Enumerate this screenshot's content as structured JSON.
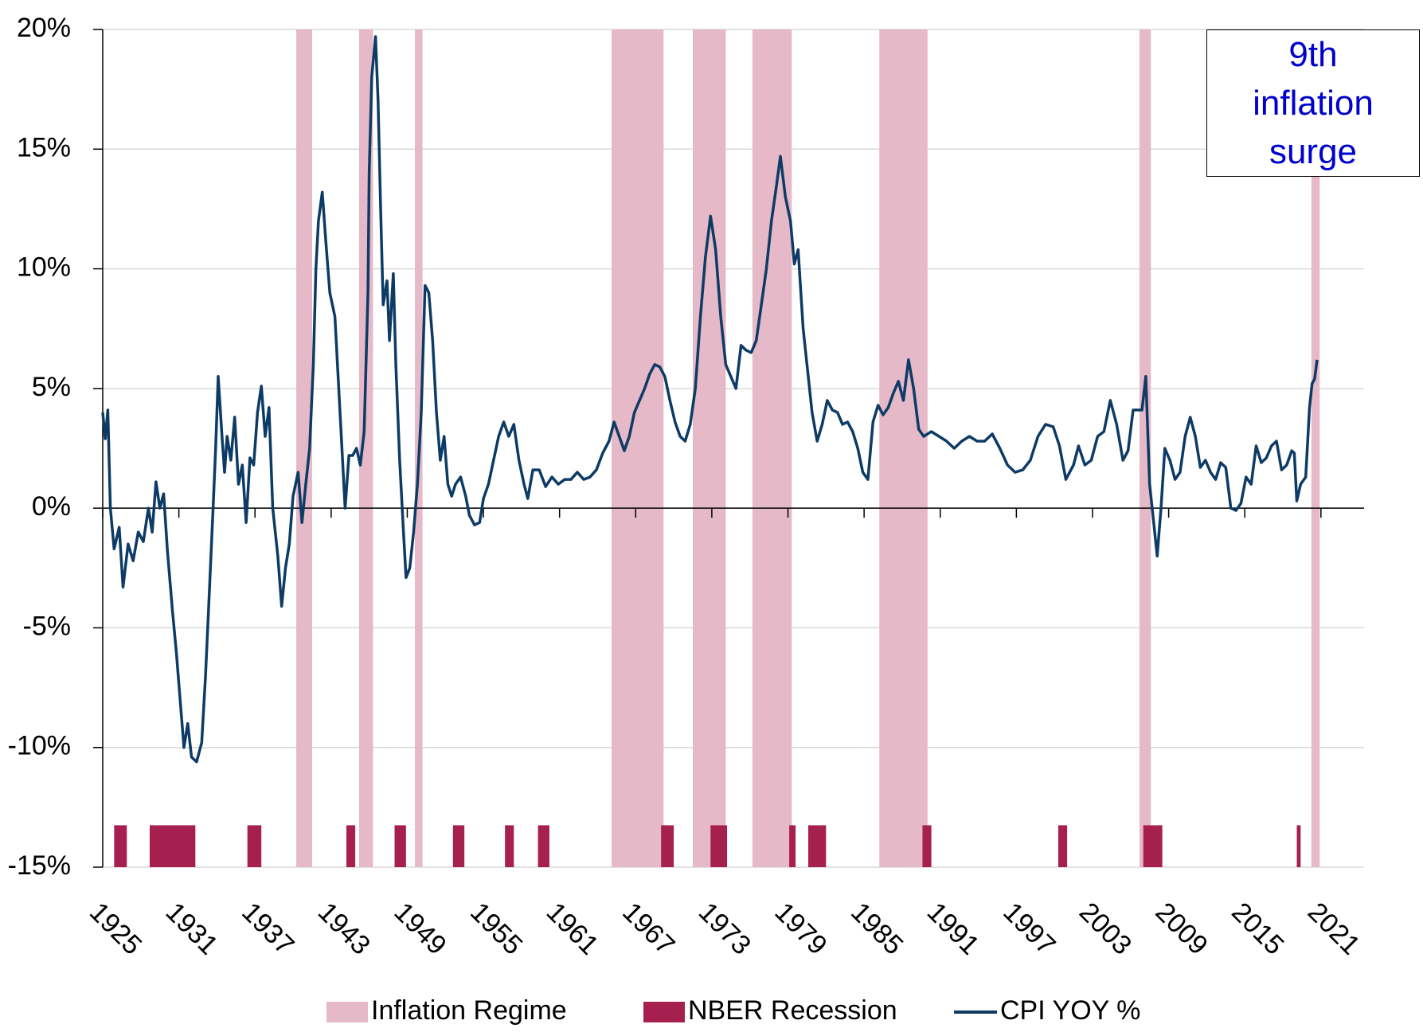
{
  "chart_data": {
    "type": "line",
    "x": [
      1925.0,
      1925.2,
      1925.4,
      1925.6,
      1925.9,
      1926.3,
      1926.6,
      1927.0,
      1927.4,
      1927.8,
      1928.2,
      1928.6,
      1928.9,
      1929.2,
      1929.5,
      1929.8,
      1930.1,
      1930.5,
      1930.8,
      1931.1,
      1931.4,
      1931.7,
      1932.0,
      1932.4,
      1932.8,
      1933.1,
      1933.4,
      1933.7,
      1933.9,
      1934.1,
      1934.4,
      1934.6,
      1934.8,
      1935.1,
      1935.4,
      1935.7,
      1936.0,
      1936.3,
      1936.6,
      1936.9,
      1937.2,
      1937.5,
      1937.8,
      1938.1,
      1938.4,
      1938.8,
      1939.1,
      1939.4,
      1939.7,
      1940.0,
      1940.4,
      1940.7,
      1941.0,
      1941.3,
      1941.6,
      1941.8,
      1942.0,
      1942.3,
      1942.6,
      1942.9,
      1943.3,
      1943.6,
      1943.9,
      1944.1,
      1944.4,
      1944.7,
      1945.0,
      1945.3,
      1945.6,
      1945.9,
      1946.0,
      1946.2,
      1946.5,
      1946.7,
      1946.9,
      1947.1,
      1947.4,
      1947.6,
      1947.9,
      1948.1,
      1948.4,
      1948.7,
      1948.9,
      1949.2,
      1949.5,
      1949.8,
      1950.1,
      1950.4,
      1950.7,
      1951.0,
      1951.3,
      1951.6,
      1951.9,
      1952.2,
      1952.5,
      1952.8,
      1953.2,
      1953.6,
      1953.9,
      1954.3,
      1954.7,
      1955.0,
      1955.4,
      1955.8,
      1956.2,
      1956.6,
      1957.0,
      1957.4,
      1957.8,
      1958.2,
      1958.5,
      1958.9,
      1959.4,
      1959.9,
      1960.4,
      1960.9,
      1961.4,
      1961.9,
      1962.4,
      1962.9,
      1963.4,
      1963.9,
      1964.4,
      1964.9,
      1965.3,
      1965.7,
      1966.1,
      1966.5,
      1966.9,
      1967.3,
      1967.7,
      1968.1,
      1968.5,
      1968.9,
      1969.3,
      1969.7,
      1970.1,
      1970.5,
      1970.9,
      1971.3,
      1971.7,
      1972.1,
      1972.5,
      1972.9,
      1973.3,
      1973.7,
      1974.1,
      1974.5,
      1974.9,
      1975.3,
      1975.7,
      1976.1,
      1976.5,
      1976.9,
      1977.3,
      1977.7,
      1978.1,
      1978.4,
      1978.8,
      1979.2,
      1979.5,
      1979.8,
      1980.2,
      1980.5,
      1980.9,
      1981.3,
      1981.7,
      1982.1,
      1982.5,
      1982.9,
      1983.3,
      1983.7,
      1984.1,
      1984.5,
      1984.9,
      1985.3,
      1985.7,
      1986.1,
      1986.5,
      1986.9,
      1987.3,
      1987.7,
      1988.1,
      1988.5,
      1988.9,
      1989.3,
      1989.7,
      1990.3,
      1990.9,
      1991.5,
      1992.1,
      1992.7,
      1993.3,
      1993.9,
      1994.5,
      1995.1,
      1995.7,
      1996.3,
      1996.9,
      1997.5,
      1998.1,
      1998.7,
      1999.3,
      1999.9,
      2000.4,
      2000.9,
      2001.5,
      2001.9,
      2002.4,
      2002.9,
      2003.4,
      2003.9,
      2004.4,
      2004.9,
      2005.4,
      2005.8,
      2006.2,
      2006.6,
      2006.9,
      2007.2,
      2007.5,
      2007.8,
      2008.1,
      2008.4,
      2008.7,
      2009.1,
      2009.5,
      2009.9,
      2010.3,
      2010.7,
      2011.1,
      2011.5,
      2011.9,
      2012.3,
      2012.7,
      2013.1,
      2013.5,
      2013.9,
      2014.3,
      2014.7,
      2015.1,
      2015.5,
      2015.9,
      2016.3,
      2016.7,
      2017.1,
      2017.5,
      2017.9,
      2018.3,
      2018.7,
      2018.9,
      2019.1,
      2019.4,
      2019.8,
      2020.1,
      2020.3,
      2020.5,
      2020.7
    ],
    "series": [
      {
        "name": "CPI YOY %",
        "color": "#0d3b66",
        "values": [
          4,
          2.9,
          4.1,
          0,
          -1.7,
          -0.8,
          -3.3,
          -1.5,
          -2.2,
          -1,
          -1.4,
          0,
          -1,
          1.1,
          0,
          0.6,
          -1.8,
          -4.3,
          -6,
          -8,
          -10,
          -9,
          -10.4,
          -10.6,
          -9.8,
          -7,
          -3.5,
          0,
          2.5,
          5.5,
          3,
          1.5,
          3,
          2,
          3.8,
          1,
          1.8,
          -0.6,
          2.1,
          1.8,
          4,
          5.1,
          3,
          4.2,
          0,
          -2,
          -4.1,
          -2.5,
          -1.5,
          0.5,
          1.5,
          -0.6,
          1,
          2.5,
          6,
          10,
          12,
          13.2,
          11,
          9,
          8,
          5,
          2,
          0,
          2.2,
          2.2,
          2.5,
          1.8,
          3.2,
          9,
          14,
          18,
          19.7,
          17,
          12.5,
          8.5,
          9.5,
          7,
          9.8,
          6,
          2,
          -1,
          -2.9,
          -2.5,
          -1,
          1,
          4,
          9.3,
          9,
          7,
          4,
          2,
          3,
          1,
          0.5,
          1,
          1.3,
          0.5,
          -0.3,
          -0.7,
          -0.6,
          0.4,
          1,
          2,
          3,
          3.6,
          3,
          3.5,
          2,
          1,
          0.4,
          1.6,
          1.6,
          0.9,
          1.3,
          1,
          1.2,
          1.2,
          1.5,
          1.2,
          1.3,
          1.6,
          2.3,
          2.8,
          3.6,
          3,
          2.4,
          3,
          4,
          4.5,
          5,
          5.6,
          6,
          5.9,
          5.5,
          4.5,
          3.6,
          3,
          2.8,
          3.5,
          5,
          8,
          10.5,
          12.2,
          10.8,
          8,
          6,
          5.5,
          5,
          6.8,
          6.6,
          6.5,
          7,
          8.5,
          10,
          12,
          13.5,
          14.7,
          13,
          12,
          10.2,
          10.8,
          7.5,
          6,
          4,
          2.8,
          3.5,
          4.5,
          4.1,
          4,
          3.5,
          3.6,
          3.2,
          2.5,
          1.5,
          1.2,
          3.6,
          4.3,
          3.9,
          4.2,
          4.8,
          5.3,
          4.5,
          6.2,
          5,
          3.3,
          3,
          3.2,
          3,
          2.8,
          2.5,
          2.8,
          3,
          2.8,
          2.8,
          3.1,
          2.5,
          1.8,
          1.5,
          1.6,
          2,
          3,
          3.5,
          3.4,
          2.6,
          1.2,
          1.8,
          2.6,
          1.8,
          2,
          3,
          3.2,
          4.5,
          3.5,
          2,
          2.4,
          4.1,
          4.1,
          4.1,
          5.5,
          1,
          -0.5,
          -2,
          0,
          2.5,
          2,
          1.2,
          1.5,
          3,
          3.8,
          3,
          1.7,
          2,
          1.5,
          1.2,
          1.9,
          1.7,
          0,
          -0.1,
          0.2,
          1.3,
          1,
          2.6,
          1.9,
          2.1,
          2.6,
          2.8,
          1.6,
          1.8,
          2.4,
          2.3,
          0.3,
          1,
          1.3,
          4.2,
          5.2,
          5.4,
          6.2
        ]
      }
    ],
    "bands": [
      {
        "name": "Inflation Regime",
        "color": "#e6b9c8",
        "ranges": [
          [
            1940.25,
            1941.5
          ],
          [
            1945.2,
            1946.3
          ],
          [
            1949.6,
            1950.2
          ],
          [
            1965.1,
            1969.2
          ],
          [
            1971.5,
            1974.1
          ],
          [
            1976.2,
            1979.3
          ],
          [
            1986.2,
            1990.0
          ],
          [
            2006.7,
            2007.6
          ],
          [
            2020.25,
            2020.9
          ]
        ]
      },
      {
        "name": "NBER Recession",
        "color": "#a51f4f",
        "ranges": [
          [
            1925.9,
            1926.9
          ],
          [
            1928.7,
            1932.3
          ],
          [
            1936.4,
            1937.5
          ],
          [
            1944.2,
            1944.9
          ],
          [
            1948.0,
            1948.9
          ],
          [
            1952.6,
            1953.5
          ],
          [
            1956.7,
            1957.4
          ],
          [
            1959.3,
            1960.2
          ],
          [
            1969.0,
            1970.0
          ],
          [
            1972.9,
            1974.2
          ],
          [
            1979.1,
            1979.6
          ],
          [
            1980.6,
            1982.0
          ],
          [
            1989.6,
            1990.3
          ],
          [
            2000.3,
            2001.0
          ],
          [
            2007.0,
            2008.5
          ],
          [
            2019.1,
            2019.4
          ]
        ]
      }
    ],
    "xlim": [
      1925,
      2024.4
    ],
    "xticks": [
      1925,
      1931,
      1937,
      1943,
      1949,
      1955,
      1961,
      1967,
      1973,
      1979,
      1985,
      1991,
      1997,
      2003,
      2009,
      2015,
      2021
    ],
    "ylim": [
      -15,
      20
    ],
    "yticks": [
      {
        "value": -15,
        "label": "-15%"
      },
      {
        "value": -10,
        "label": "-10%"
      },
      {
        "value": -5,
        "label": "-5%"
      },
      {
        "value": 0,
        "label": "0%"
      },
      {
        "value": 5,
        "label": "5%"
      },
      {
        "value": 10,
        "label": "10%"
      },
      {
        "value": 15,
        "label": "15%"
      },
      {
        "value": 20,
        "label": "20%"
      }
    ],
    "grid": true,
    "legend": "bottom",
    "annotation": "9th inflation surge"
  }
}
